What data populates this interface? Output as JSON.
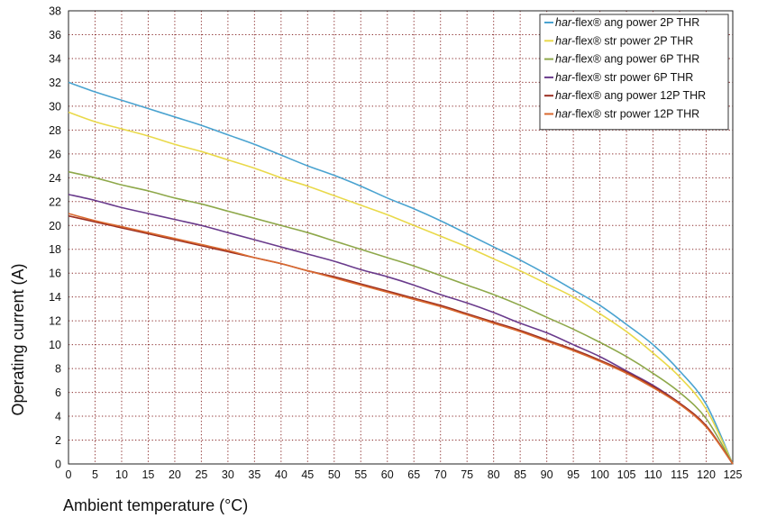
{
  "chart_data": {
    "type": "line",
    "title": "",
    "xlabel": "Ambient temperature (°C)",
    "ylabel": "Operating current (A)",
    "xlim": [
      0,
      125
    ],
    "ylim": [
      0,
      38
    ],
    "x_ticks": [
      0,
      5,
      10,
      15,
      20,
      25,
      30,
      35,
      40,
      45,
      50,
      55,
      60,
      65,
      70,
      75,
      80,
      85,
      90,
      95,
      100,
      105,
      110,
      115,
      120,
      125
    ],
    "y_ticks": [
      0,
      2,
      4,
      6,
      8,
      10,
      12,
      14,
      16,
      18,
      20,
      22,
      24,
      26,
      28,
      30,
      32,
      34,
      36,
      38
    ],
    "grid": "dotted",
    "legend_position": "top-right",
    "x": [
      0,
      5,
      10,
      15,
      20,
      25,
      30,
      35,
      40,
      45,
      50,
      55,
      60,
      65,
      70,
      75,
      80,
      85,
      90,
      95,
      100,
      105,
      110,
      115,
      120,
      125
    ],
    "series": [
      {
        "name_italic": "har",
        "name_rest": "-flex® ang power 2P THR",
        "color": "#4aa3d0",
        "values": [
          32.0,
          31.2,
          30.5,
          29.8,
          29.1,
          28.4,
          27.6,
          26.8,
          25.9,
          25.0,
          24.2,
          23.3,
          22.3,
          21.4,
          20.4,
          19.3,
          18.2,
          17.1,
          15.9,
          14.6,
          13.3,
          11.7,
          10.0,
          7.8,
          5.0,
          0.0
        ]
      },
      {
        "name_italic": "har",
        "name_rest": "-flex® str power 2P THR",
        "color": "#e9d94a",
        "values": [
          29.5,
          28.7,
          28.1,
          27.5,
          26.8,
          26.2,
          25.5,
          24.8,
          24.0,
          23.3,
          22.5,
          21.7,
          20.9,
          20.0,
          19.1,
          18.2,
          17.2,
          16.2,
          15.1,
          14.0,
          12.6,
          11.1,
          9.3,
          7.3,
          4.6,
          0.0
        ]
      },
      {
        "name_italic": "har",
        "name_rest": "-flex® ang power 6P THR",
        "color": "#8ea84a",
        "values": [
          24.5,
          24.0,
          23.4,
          22.9,
          22.3,
          21.8,
          21.2,
          20.6,
          20.0,
          19.4,
          18.7,
          18.0,
          17.3,
          16.6,
          15.8,
          15.0,
          14.2,
          13.3,
          12.3,
          11.3,
          10.2,
          9.0,
          7.6,
          6.0,
          3.8,
          0.0
        ]
      },
      {
        "name_italic": "har",
        "name_rest": "-flex® str power 6P THR",
        "color": "#6a3b8c",
        "values": [
          22.6,
          22.1,
          21.5,
          21.0,
          20.5,
          20.0,
          19.4,
          18.8,
          18.2,
          17.6,
          17.0,
          16.3,
          15.7,
          15.0,
          14.2,
          13.5,
          12.7,
          11.8,
          11.0,
          10.0,
          9.0,
          7.8,
          6.6,
          5.1,
          3.2,
          0.0
        ]
      },
      {
        "name_italic": "har",
        "name_rest": "-flex® ang power 12P THR",
        "color": "#9b2f22",
        "values": [
          20.8,
          20.3,
          19.8,
          19.3,
          18.8,
          18.3,
          17.8,
          17.3,
          16.8,
          16.2,
          15.7,
          15.1,
          14.5,
          13.9,
          13.3,
          12.6,
          11.9,
          11.2,
          10.4,
          9.6,
          8.7,
          7.7,
          6.5,
          5.1,
          3.2,
          0.0
        ]
      },
      {
        "name_italic": "har",
        "name_rest": "-flex® str power 12P THR",
        "color": "#d9692f",
        "values": [
          21.0,
          20.4,
          19.9,
          19.4,
          18.9,
          18.4,
          17.9,
          17.3,
          16.8,
          16.2,
          15.6,
          15.0,
          14.4,
          13.8,
          13.2,
          12.5,
          11.8,
          11.1,
          10.3,
          9.5,
          8.6,
          7.6,
          6.4,
          5.0,
          3.1,
          0.0
        ]
      }
    ]
  }
}
